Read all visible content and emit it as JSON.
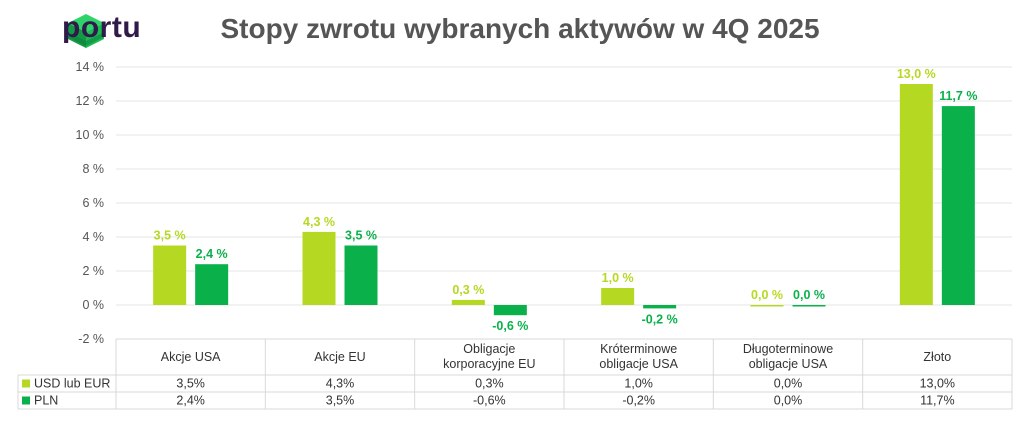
{
  "brand": {
    "name": "portu"
  },
  "chart_data": {
    "type": "bar",
    "title": "Stopy zwrotu wybranych aktywów w 4Q 2025",
    "categories": [
      "Akcje USA",
      "Akcje EU",
      "Obligacje korporacyjne EU",
      "Króterminowe obligacje USA",
      "Długoterminowe obligacje USA",
      "Złoto"
    ],
    "category_lines": [
      [
        "Akcje USA"
      ],
      [
        "Akcje EU"
      ],
      [
        "Obligacje",
        "korporacyjne EU"
      ],
      [
        "Króterminowe",
        "obligacje USA"
      ],
      [
        "Długoterminowe",
        "obligacje USA"
      ],
      [
        "Złoto"
      ]
    ],
    "series": [
      {
        "name": "USD lub EUR",
        "color": "#b5d922",
        "values": [
          3.5,
          4.3,
          0.3,
          1.0,
          0.0,
          13.0
        ],
        "data_labels": [
          "3,5 %",
          "4,3 %",
          "0,3 %",
          "1,0 %",
          "0,0 %",
          "13,0 %"
        ],
        "table_values": [
          "3,5%",
          "4,3%",
          "0,3%",
          "1,0%",
          "0,0%",
          "13,0%"
        ]
      },
      {
        "name": "PLN",
        "color": "#0ab14b",
        "values": [
          2.4,
          3.5,
          -0.6,
          -0.2,
          0.0,
          11.7
        ],
        "data_labels": [
          "2,4 %",
          "3,5 %",
          "-0,6 %",
          "-0,2 %",
          "0,0 %",
          "11,7 %"
        ],
        "table_values": [
          "2,4%",
          "3,5%",
          "-0,6%",
          "-0,2%",
          "0,0%",
          "11,7%"
        ]
      }
    ],
    "ylim": [
      -2,
      14
    ],
    "yticks": [
      -2,
      0,
      2,
      4,
      6,
      8,
      10,
      12,
      14
    ],
    "ytick_labels": [
      "-2 %",
      "0 %",
      "2 %",
      "4 %",
      "6 %",
      "8 %",
      "10 %",
      "12 %",
      "14 %"
    ],
    "grid": true,
    "legend": "bottom-left data table"
  }
}
